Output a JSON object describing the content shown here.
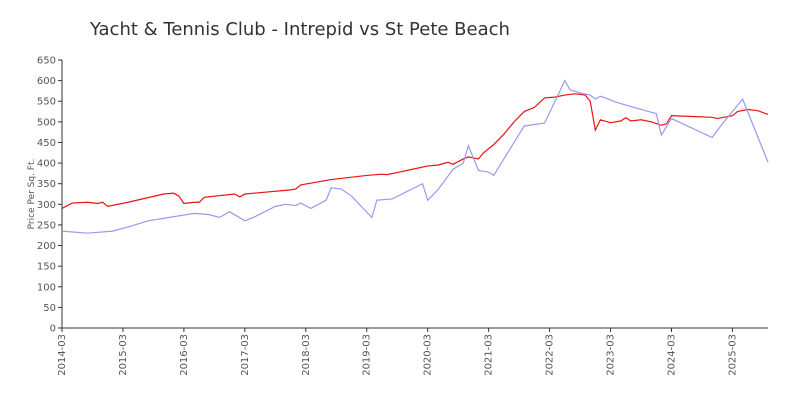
{
  "chart_data": {
    "type": "line",
    "title": "Yacht & Tennis Club - Intrepid vs St Pete Beach",
    "y_label": "Price Per Sq. Ft.",
    "xlim": [
      "2014-03",
      "2025-10"
    ],
    "xticks": [
      "2014-03",
      "2015-03",
      "2016-03",
      "2017-03",
      "2018-03",
      "2019-03",
      "2020-03",
      "2021-03",
      "2022-03",
      "2023-03",
      "2024-03",
      "2025-03"
    ],
    "ylim": [
      0,
      650
    ],
    "yticks": [
      0,
      50,
      100,
      150,
      200,
      250,
      300,
      350,
      400,
      450,
      500,
      550,
      600,
      650
    ],
    "grid": false,
    "series": [
      {
        "color": "#ee1111",
        "x": [
          "2014-03",
          "2014-05",
          "2014-08",
          "2014-10",
          "2014-11",
          "2014-12",
          "2015-04",
          "2015-11",
          "2016-01",
          "2016-02",
          "2016-03",
          "2016-05",
          "2016-06",
          "2016-07",
          "2017-01",
          "2017-02",
          "2017-03",
          "2017-12",
          "2018-01",
          "2018-02",
          "2018-08",
          "2019-03",
          "2019-06",
          "2019-07",
          "2019-09",
          "2019-12",
          "2020-03",
          "2020-05",
          "2020-07",
          "2020-08",
          "2020-10",
          "2020-11",
          "2021-01",
          "2021-02",
          "2021-04",
          "2021-06",
          "2021-08",
          "2021-10",
          "2021-12",
          "2022-02",
          "2022-04",
          "2022-06",
          "2022-08",
          "2022-10",
          "2022-11",
          "2022-12",
          "2023-01",
          "2023-03",
          "2023-05",
          "2023-06",
          "2023-07",
          "2023-09",
          "2023-11",
          "2024-01",
          "2024-02",
          "2024-03",
          "2024-07",
          "2024-11",
          "2024-12",
          "2025-03",
          "2025-04",
          "2025-06",
          "2025-08",
          "2025-10"
        ],
        "values": [
          290,
          303,
          305,
          302,
          305,
          295,
          305,
          325,
          327,
          320,
          302,
          305,
          305,
          317,
          325,
          318,
          325,
          335,
          337,
          347,
          360,
          370,
          373,
          372,
          377,
          385,
          393,
          395,
          402,
          397,
          410,
          415,
          410,
          425,
          445,
          470,
          500,
          525,
          535,
          558,
          560,
          565,
          568,
          565,
          550,
          480,
          505,
          498,
          502,
          510,
          502,
          505,
          500,
          492,
          495,
          515,
          513,
          511,
          508,
          515,
          525,
          530,
          527,
          518
        ]
      },
      {
        "color": "#9999ee",
        "x": [
          "2014-03",
          "2014-08",
          "2015-01",
          "2015-04",
          "2015-08",
          "2015-12",
          "2016-05",
          "2016-08",
          "2016-10",
          "2016-12",
          "2017-03",
          "2017-05",
          "2017-09",
          "2017-11",
          "2018-01",
          "2018-02",
          "2018-04",
          "2018-07",
          "2018-08",
          "2018-10",
          "2018-12",
          "2019-04",
          "2019-05",
          "2019-08",
          "2020-02",
          "2020-03",
          "2020-05",
          "2020-08",
          "2020-10",
          "2020-11",
          "2021-01",
          "2021-03",
          "2021-04",
          "2021-10",
          "2022-02",
          "2022-06",
          "2022-07",
          "2022-09",
          "2022-11",
          "2022-12",
          "2023-01",
          "2023-02",
          "2023-04",
          "2023-09",
          "2023-12",
          "2024-01",
          "2024-03",
          "2024-11",
          "2025-01",
          "2025-05",
          "2025-10"
        ],
        "values": [
          235,
          230,
          235,
          245,
          260,
          268,
          278,
          275,
          268,
          282,
          260,
          270,
          295,
          300,
          297,
          303,
          290,
          310,
          340,
          337,
          320,
          268,
          310,
          313,
          350,
          310,
          335,
          385,
          400,
          442,
          382,
          378,
          370,
          490,
          497,
          600,
          578,
          570,
          565,
          555,
          562,
          558,
          548,
          530,
          520,
          468,
          508,
          462,
          495,
          555,
          402
        ]
      }
    ]
  }
}
